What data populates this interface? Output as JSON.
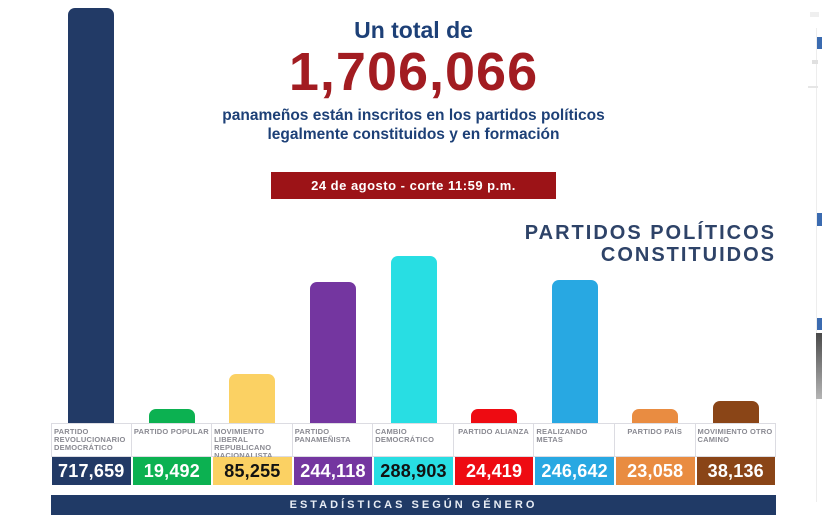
{
  "header": {
    "intro": "Un total de",
    "total": "1,706,066",
    "subtitle_line1": "panameños están inscritos en los partidos políticos",
    "subtitle_line2": "legalmente constituidos y en formación",
    "date_badge": "24 de agosto - corte 11:59 p.m."
  },
  "section": {
    "title_line1": "PARTIDOS POLÍTICOS",
    "title_line2": "CONSTITUIDOS"
  },
  "footer": {
    "banner": "ESTADÍSTICAS SEGÚN GÉNERO"
  },
  "colors": {
    "headline_blue": "#1D4077",
    "total_red": "#A21C21",
    "badge_red": "#9C1317",
    "section_navy": "#2E4368",
    "banner_navy": "#203A66",
    "label_gray": "#8A8A92"
  },
  "parties": [
    {
      "name": "PARTIDO REVOLUCIONARIO DEMOCRÁTICO",
      "value_label": "717,659",
      "value": 717659,
      "color": "#223A66",
      "text_on_color": "#FFFFFF"
    },
    {
      "name": "PARTIDO POPULAR",
      "value_label": "19,492",
      "value": 19492,
      "color": "#0CB151",
      "text_on_color": "#FFFFFF"
    },
    {
      "name": "MOVIMIENTO LIBERAL REPUBLICANO NACIONALISTA",
      "value_label": "85,255",
      "value": 85255,
      "color": "#FBD163",
      "text_on_color": "#121212"
    },
    {
      "name": "PARTIDO PANAMEÑISTA",
      "value_label": "244,118",
      "value": 244118,
      "color": "#7436A0",
      "text_on_color": "#FFFFFF"
    },
    {
      "name": "CAMBIO DEMOCRÁTICO",
      "value_label": "288,903",
      "value": 288903,
      "color": "#28DEE3",
      "text_on_color": "#121212"
    },
    {
      "name": "PARTIDO ALIANZA",
      "value_label": "24,419",
      "value": 24419,
      "color": "#EE0B12",
      "text_on_color": "#FFFFFF"
    },
    {
      "name": "REALIZANDO METAS",
      "value_label": "246,642",
      "value": 246642,
      "color": "#28A8E2",
      "text_on_color": "#FFFFFF"
    },
    {
      "name": "PARTIDO PAÍS",
      "value_label": "23,058",
      "value": 23058,
      "color": "#E98C41",
      "text_on_color": "#FFFFFF"
    },
    {
      "name": "MOVIMIENTO OTRO CAMINO",
      "value_label": "38,136",
      "value": 38136,
      "color": "#8A4517",
      "text_on_color": "#FFFFFF"
    }
  ],
  "chart_data": {
    "type": "bar",
    "title": "PARTIDOS POLÍTICOS CONSTITUIDOS",
    "subtitle": "Un total de 1,706,066 panameños están inscritos en los partidos políticos legalmente constituidos y en formación — 24 de agosto - corte 11:59 p.m.",
    "categories": [
      "PARTIDO REVOLUCIONARIO DEMOCRÁTICO",
      "PARTIDO POPULAR",
      "MOVIMIENTO LIBERAL REPUBLICANO NACIONALISTA",
      "PARTIDO PANAMEÑISTA",
      "CAMBIO DEMOCRÁTICO",
      "PARTIDO ALIANZA",
      "REALIZANDO METAS",
      "PARTIDO PAÍS",
      "MOVIMIENTO OTRO CAMINO"
    ],
    "values": [
      717659,
      19492,
      85255,
      244118,
      288903,
      24419,
      246642,
      23058,
      38136
    ],
    "bar_colors": [
      "#223A66",
      "#0CB151",
      "#FBD163",
      "#7436A0",
      "#28DEE3",
      "#EE0B12",
      "#28A8E2",
      "#E98C41",
      "#8A4517"
    ],
    "data_labels": [
      "717,659",
      "19,492",
      "85,255",
      "244,118",
      "288,903",
      "24,419",
      "246,642",
      "23,058",
      "38,136"
    ],
    "xlabel": "",
    "ylabel": "",
    "ylim": [
      0,
      731000
    ],
    "grid": false,
    "legend": false
  }
}
